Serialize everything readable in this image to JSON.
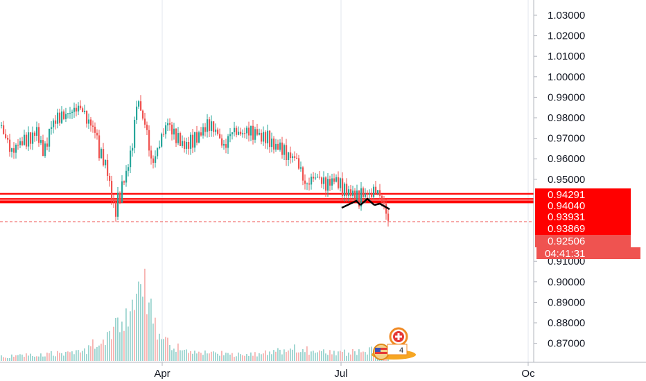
{
  "chart_data": {
    "type": "candlestick",
    "y_ticks": [
      "1.03000",
      "1.02000",
      "1.01000",
      "1.00000",
      "0.99000",
      "0.98000",
      "0.97000",
      "0.96000",
      "0.95000",
      "0.91000",
      "0.90000",
      "0.89000",
      "0.88000",
      "0.87000"
    ],
    "x_ticks": [
      "Apr",
      "Jul",
      "Oc"
    ],
    "ylim": [
      0.862,
      1.037
    ],
    "grid": true,
    "horizontal_levels": [
      {
        "label": "0.94291",
        "value": 0.94291
      },
      {
        "label": "0.94040",
        "value": 0.9404
      },
      {
        "label": "0.93931",
        "value": 0.93931
      },
      {
        "label": "0.93869",
        "value": 0.93869
      }
    ],
    "last_price": "0.92506",
    "countdown": "04:41:31",
    "markers": {
      "pattern": "head-and-shoulders",
      "event_badge_count": "4"
    },
    "colors": {
      "up": "#26a69a",
      "down": "#ef5350",
      "level": "#ff0000",
      "last_price": "#ef5350",
      "pattern": "#000000"
    },
    "price_path": [
      [
        0,
        0.976
      ],
      [
        10,
        0.968
      ],
      [
        16,
        0.963
      ],
      [
        24,
        0.967
      ],
      [
        34,
        0.969
      ],
      [
        44,
        0.97
      ],
      [
        52,
        0.974
      ],
      [
        58,
        0.966
      ],
      [
        64,
        0.964
      ],
      [
        72,
        0.976
      ],
      [
        82,
        0.98
      ],
      [
        92,
        0.981
      ],
      [
        102,
        0.983
      ],
      [
        112,
        0.985
      ],
      [
        118,
        0.984
      ],
      [
        124,
        0.979
      ],
      [
        132,
        0.976
      ],
      [
        138,
        0.972
      ],
      [
        142,
        0.963
      ],
      [
        148,
        0.96
      ],
      [
        153,
        0.955
      ],
      [
        157,
        0.948
      ],
      [
        161,
        0.94
      ],
      [
        165,
        0.933
      ],
      [
        168,
        0.939
      ],
      [
        172,
        0.942
      ],
      [
        176,
        0.948
      ],
      [
        181,
        0.953
      ],
      [
        186,
        0.96
      ],
      [
        189,
        0.966
      ],
      [
        192,
        0.972
      ],
      [
        196,
        0.988
      ],
      [
        200,
        0.986
      ],
      [
        203,
        0.983
      ],
      [
        206,
        0.978
      ],
      [
        209,
        0.976
      ],
      [
        212,
        0.972
      ],
      [
        215,
        0.962
      ],
      [
        218,
        0.957
      ],
      [
        221,
        0.96
      ],
      [
        224,
        0.962
      ],
      [
        227,
        0.965
      ],
      [
        230,
        0.969
      ],
      [
        234,
        0.972
      ],
      [
        238,
        0.976
      ],
      [
        242,
        0.978
      ],
      [
        246,
        0.974
      ],
      [
        250,
        0.972
      ],
      [
        255,
        0.97
      ],
      [
        260,
        0.968
      ],
      [
        265,
        0.966
      ],
      [
        270,
        0.967
      ],
      [
        276,
        0.969
      ],
      [
        282,
        0.97
      ],
      [
        288,
        0.972
      ],
      [
        294,
        0.975
      ],
      [
        300,
        0.977
      ],
      [
        306,
        0.975
      ],
      [
        312,
        0.973
      ],
      [
        318,
        0.968
      ],
      [
        323,
        0.965
      ],
      [
        328,
        0.97
      ],
      [
        334,
        0.974
      ],
      [
        340,
        0.973
      ],
      [
        346,
        0.972
      ],
      [
        352,
        0.973
      ],
      [
        358,
        0.974
      ],
      [
        364,
        0.972
      ],
      [
        370,
        0.973
      ],
      [
        376,
        0.97
      ],
      [
        382,
        0.971
      ],
      [
        388,
        0.969
      ],
      [
        394,
        0.966
      ],
      [
        400,
        0.966
      ],
      [
        406,
        0.965
      ],
      [
        412,
        0.962
      ],
      [
        418,
        0.961
      ],
      [
        424,
        0.961
      ],
      [
        430,
        0.957
      ],
      [
        434,
        0.953
      ],
      [
        438,
        0.948
      ],
      [
        442,
        0.947
      ],
      [
        447,
        0.95
      ],
      [
        452,
        0.951
      ],
      [
        458,
        0.951
      ],
      [
        464,
        0.949
      ],
      [
        470,
        0.947
      ],
      [
        476,
        0.949
      ],
      [
        482,
        0.95
      ],
      [
        488,
        0.948
      ],
      [
        494,
        0.945
      ],
      [
        500,
        0.944
      ],
      [
        506,
        0.943
      ],
      [
        512,
        0.942
      ],
      [
        517,
        0.94
      ],
      [
        521,
        0.944
      ],
      [
        525,
        0.942
      ],
      [
        529,
        0.943
      ],
      [
        533,
        0.942
      ],
      [
        537,
        0.944
      ],
      [
        541,
        0.945
      ],
      [
        545,
        0.943
      ],
      [
        549,
        0.941
      ],
      [
        553,
        0.937
      ],
      [
        557,
        0.933
      ],
      [
        560,
        0.928
      ]
    ],
    "volume_profile": [
      [
        0,
        0.05
      ],
      [
        20,
        0.06
      ],
      [
        40,
        0.07
      ],
      [
        60,
        0.08
      ],
      [
        80,
        0.09
      ],
      [
        100,
        0.09
      ],
      [
        115,
        0.1
      ],
      [
        122,
        0.13
      ],
      [
        130,
        0.17
      ],
      [
        138,
        0.22
      ],
      [
        146,
        0.26
      ],
      [
        152,
        0.33
      ],
      [
        158,
        0.38
      ],
      [
        164,
        0.43
      ],
      [
        170,
        0.47
      ],
      [
        176,
        0.55
      ],
      [
        182,
        0.68
      ],
      [
        188,
        0.75
      ],
      [
        194,
        0.96
      ],
      [
        200,
        1.0
      ],
      [
        206,
        0.86
      ],
      [
        212,
        0.72
      ],
      [
        218,
        0.55
      ],
      [
        224,
        0.42
      ],
      [
        230,
        0.35
      ],
      [
        236,
        0.28
      ],
      [
        244,
        0.22
      ],
      [
        252,
        0.18
      ],
      [
        262,
        0.14
      ],
      [
        272,
        0.12
      ],
      [
        285,
        0.11
      ],
      [
        300,
        0.11
      ],
      [
        320,
        0.09
      ],
      [
        340,
        0.08
      ],
      [
        360,
        0.08
      ],
      [
        380,
        0.09
      ],
      [
        400,
        0.12
      ],
      [
        420,
        0.15
      ],
      [
        440,
        0.13
      ],
      [
        460,
        0.11
      ],
      [
        480,
        0.1
      ],
      [
        500,
        0.1
      ],
      [
        520,
        0.11
      ],
      [
        540,
        0.13
      ],
      [
        560,
        0.1
      ]
    ]
  }
}
